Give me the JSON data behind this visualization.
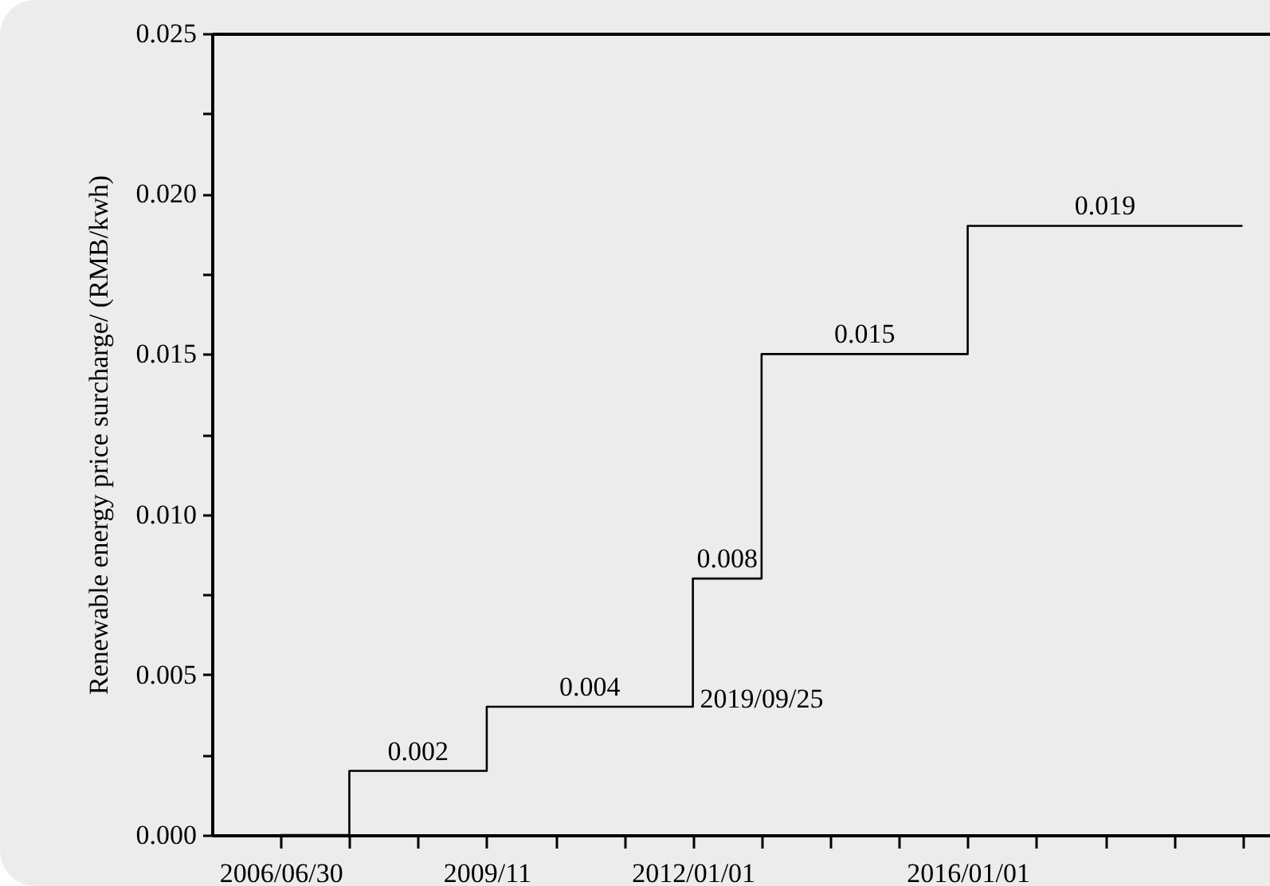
{
  "chart_data": {
    "type": "step",
    "ylabel": "Renewable energy price surcharge/ (RMB/kwh)",
    "categories": [
      "2006/06/30",
      null,
      null,
      "2009/11",
      null,
      null,
      "2012/01/01",
      null,
      null,
      null,
      "2016/01/01",
      null,
      null,
      null,
      null
    ],
    "series": [
      {
        "color": "#000000",
        "values": [
          0,
          0.002,
          0.002,
          0.004,
          0.004,
          0.004,
          0.008,
          0.015,
          0.015,
          0.015,
          0.019,
          0.019,
          0.019,
          0.019,
          0.019
        ],
        "value_labels": [
          null,
          null,
          "0.002",
          null,
          "0.004",
          null,
          "0.008",
          null,
          "0.015",
          null,
          null,
          null,
          "0.019",
          null,
          null
        ]
      }
    ],
    "ylim": [
      0,
      0.025
    ],
    "yticks": [
      {
        "value": 0,
        "label": "0.000"
      },
      {
        "value": 0.0025,
        "label": null
      },
      {
        "value": 0.005,
        "label": "0.005"
      },
      {
        "value": 0.0075,
        "label": null
      },
      {
        "value": 0.01,
        "label": "0.010"
      },
      {
        "value": 0.0125,
        "label": null
      },
      {
        "value": 0.015,
        "label": "0.015"
      },
      {
        "value": 0.0175,
        "label": null
      },
      {
        "value": 0.02,
        "label": "0.020"
      },
      {
        "value": 0.0225,
        "label": null
      },
      {
        "value": 0.025,
        "label": "0.025"
      }
    ],
    "annotations": [
      "2019/09/25"
    ],
    "grid": false
  }
}
